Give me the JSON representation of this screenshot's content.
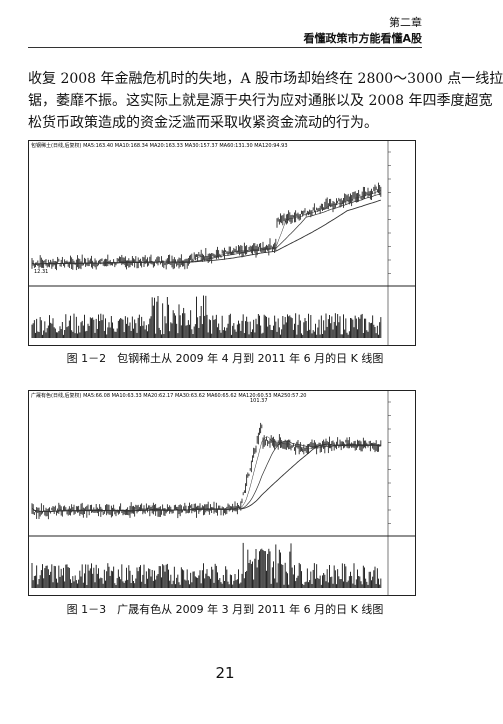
{
  "header": {
    "chapter": "第二章",
    "title": "看懂政策市方能看懂A股"
  },
  "paragraph": {
    "lines": [
      "收复 2008 年金融危机时的失地，A 股市场却始终在 2800～3000 点一线拉",
      "锯，萎靡不振。这实际上就是源于央行为应对通胀以及 2008 年四季度超宽",
      "松货币政策造成的资金泛滥而采取收紧资金流动的行为。"
    ]
  },
  "figures": [
    {
      "legend": "包钢稀土(日线,后复权) MA5:163.40 MA10:168.34 MA20:163.33 MA30:157.37 MA60:131.30 MA120:94.93",
      "low_label": "12.31",
      "caption": "图 1－2　包钢稀土从 2009 年 4 月到 2011 年 6 月的日 K 线图"
    },
    {
      "legend": "广晟有色(日线,后复权) MA5:66.08 MA10:63.33 MA20:62.17 MA30:63.62 MA60:65.62 MA120:60.53 MA250:57.20",
      "high_label": "101.37",
      "caption": "图 1－3　广晟有色从 2009 年 3 月到 2011 年 6 月的日 K 线图"
    }
  ],
  "page_number": "21"
}
